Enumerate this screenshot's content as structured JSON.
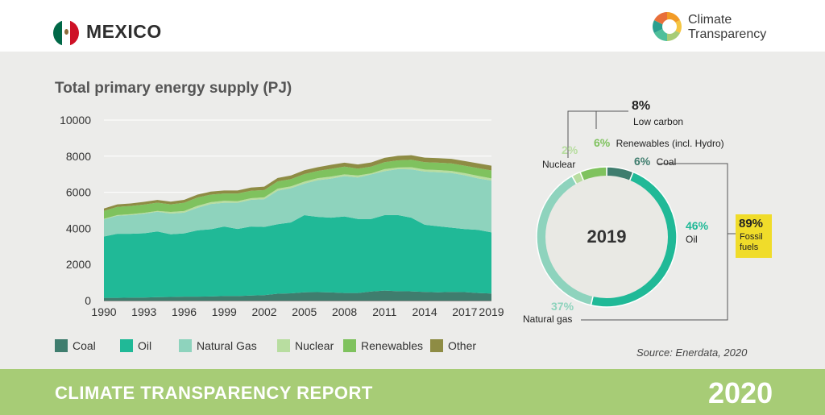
{
  "header": {
    "country": "MEXICO",
    "logo_line1": "Climate",
    "logo_line2": "Transparency",
    "flag_colors": [
      "#006847",
      "#ffffff",
      "#ce1126"
    ]
  },
  "footer": {
    "title": "CLIMATE TRANSPARENCY REPORT",
    "year": "2020"
  },
  "source": "Source: Enerdata, 2020",
  "chart_data": [
    {
      "type": "area",
      "title": "Total primary energy supply (PJ)",
      "stacked": true,
      "xlabel": "",
      "ylabel": "",
      "ylim": [
        0,
        10000
      ],
      "xlim": [
        1990,
        2019
      ],
      "yticks": [
        0,
        2000,
        4000,
        6000,
        8000,
        10000
      ],
      "xticks": [
        1990,
        1993,
        1996,
        1999,
        2002,
        2005,
        2008,
        2011,
        2014,
        2017,
        2019
      ],
      "grid": true,
      "legend_position": "bottom",
      "x": [
        1990,
        1991,
        1992,
        1993,
        1994,
        1995,
        1996,
        1997,
        1998,
        1999,
        2000,
        2001,
        2002,
        2003,
        2004,
        2005,
        2006,
        2007,
        2008,
        2009,
        2010,
        2011,
        2012,
        2013,
        2014,
        2015,
        2016,
        2017,
        2018,
        2019
      ],
      "series": [
        {
          "name": "Coal",
          "color": "#3f7d6e",
          "values": [
            150,
            150,
            160,
            170,
            190,
            200,
            220,
            220,
            230,
            250,
            250,
            280,
            300,
            380,
            400,
            460,
            470,
            450,
            420,
            420,
            500,
            550,
            520,
            510,
            480,
            460,
            480,
            470,
            420,
            390
          ]
        },
        {
          "name": "Oil",
          "color": "#20b997",
          "values": [
            3400,
            3550,
            3540,
            3560,
            3640,
            3470,
            3500,
            3670,
            3720,
            3850,
            3720,
            3820,
            3780,
            3850,
            3930,
            4270,
            4170,
            4140,
            4240,
            4100,
            4020,
            4180,
            4220,
            4080,
            3720,
            3660,
            3560,
            3490,
            3500,
            3390
          ]
        },
        {
          "name": "Natural Gas",
          "color": "#8ed3bd",
          "values": [
            950,
            1000,
            1040,
            1080,
            1090,
            1150,
            1150,
            1250,
            1400,
            1320,
            1450,
            1480,
            1540,
            1860,
            1900,
            1750,
            2030,
            2170,
            2230,
            2300,
            2470,
            2440,
            2540,
            2680,
            2950,
            2990,
            3030,
            2980,
            2850,
            2870
          ]
        },
        {
          "name": "Nuclear",
          "color": "#b8dda0",
          "values": [
            30,
            40,
            50,
            50,
            45,
            90,
            90,
            110,
            100,
            110,
            90,
            90,
            100,
            110,
            100,
            110,
            110,
            110,
            100,
            110,
            60,
            110,
            90,
            120,
            110,
            120,
            110,
            120,
            140,
            120
          ]
        },
        {
          "name": "Renewables",
          "color": "#7fc25e",
          "values": [
            440,
            450,
            450,
            460,
            460,
            420,
            460,
            460,
            420,
            400,
            420,
            410,
            400,
            400,
            400,
            420,
            400,
            430,
            430,
            380,
            370,
            390,
            400,
            410,
            410,
            410,
            420,
            410,
            430,
            440
          ]
        },
        {
          "name": "Other",
          "color": "#8e8c44",
          "values": [
            130,
            140,
            140,
            150,
            150,
            150,
            160,
            160,
            170,
            170,
            170,
            180,
            190,
            190,
            200,
            210,
            210,
            220,
            220,
            230,
            230,
            240,
            250,
            250,
            250,
            250,
            250,
            260,
            260,
            260
          ]
        }
      ]
    },
    {
      "type": "pie",
      "donut": true,
      "center_label": "2019",
      "slices": [
        {
          "name": "Coal",
          "value": 6,
          "pct": "6%",
          "color": "#3f7d6e"
        },
        {
          "name": "Oil",
          "value": 46,
          "pct": "46%",
          "color": "#20b997"
        },
        {
          "name": "Natural gas",
          "value": 37,
          "pct": "37%",
          "color": "#8ed3bd"
        },
        {
          "name": "Nuclear",
          "value": 2,
          "pct": "2%",
          "color": "#b8dda0"
        },
        {
          "name": "Renewables (incl. Hydro)",
          "value": 6,
          "pct": "6%",
          "color": "#7fc25e"
        }
      ],
      "groups": {
        "low_carbon": {
          "pct": "8%",
          "label": "Low carbon"
        },
        "fossil": {
          "pct": "89%",
          "label_line1": "Fossil",
          "label_line2": "fuels",
          "color": "#f0dc2a"
        }
      }
    }
  ]
}
